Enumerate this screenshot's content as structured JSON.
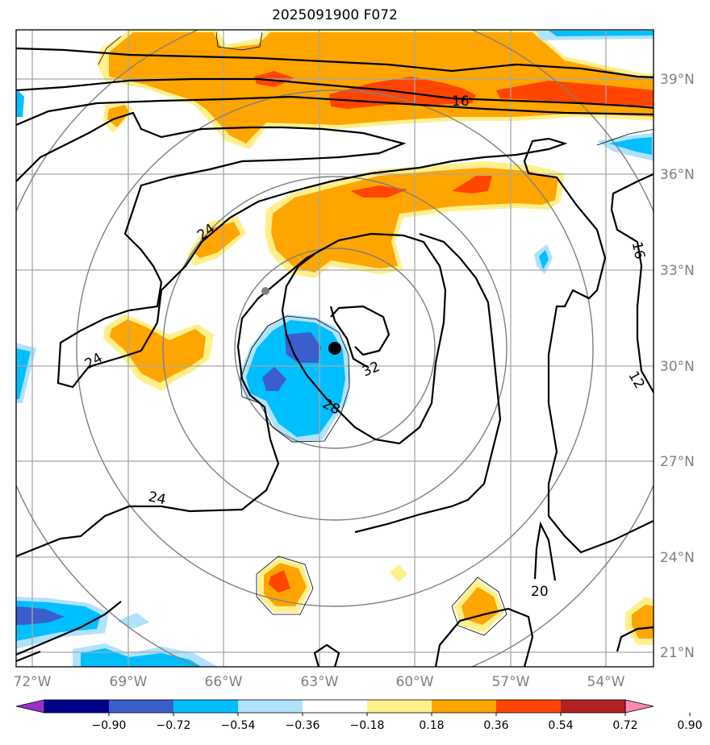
{
  "title": "2025091900 F072",
  "lat_labels": [
    "39°N",
    "36°N",
    "33°N",
    "30°N",
    "27°N",
    "24°N",
    "21°N"
  ],
  "lon_labels": [
    "72°W",
    "69°W",
    "66°W",
    "63°W",
    "60°W",
    "57°W",
    "54°W"
  ],
  "contour_labels": [
    "16",
    "24",
    "24",
    "32",
    "28",
    "24",
    "16",
    "12",
    "20"
  ],
  "colorbar": {
    "colors": [
      "#9932cc",
      "#00008b",
      "#3a5fcd",
      "#00bfff",
      "#b0e2ff",
      "#ffffff",
      "#fff08c",
      "#ffa500",
      "#ff4500",
      "#b22222",
      "#ff88b0"
    ],
    "ticks": [
      "−0.90",
      "−0.72",
      "−0.54",
      "−0.36",
      "−0.18",
      "0.18",
      "0.36",
      "0.54",
      "0.72",
      "0.90"
    ]
  },
  "markers": [
    {
      "name": "storm-center",
      "color": "#000000"
    },
    {
      "name": "secondary-point",
      "color": "#808080"
    }
  ]
}
